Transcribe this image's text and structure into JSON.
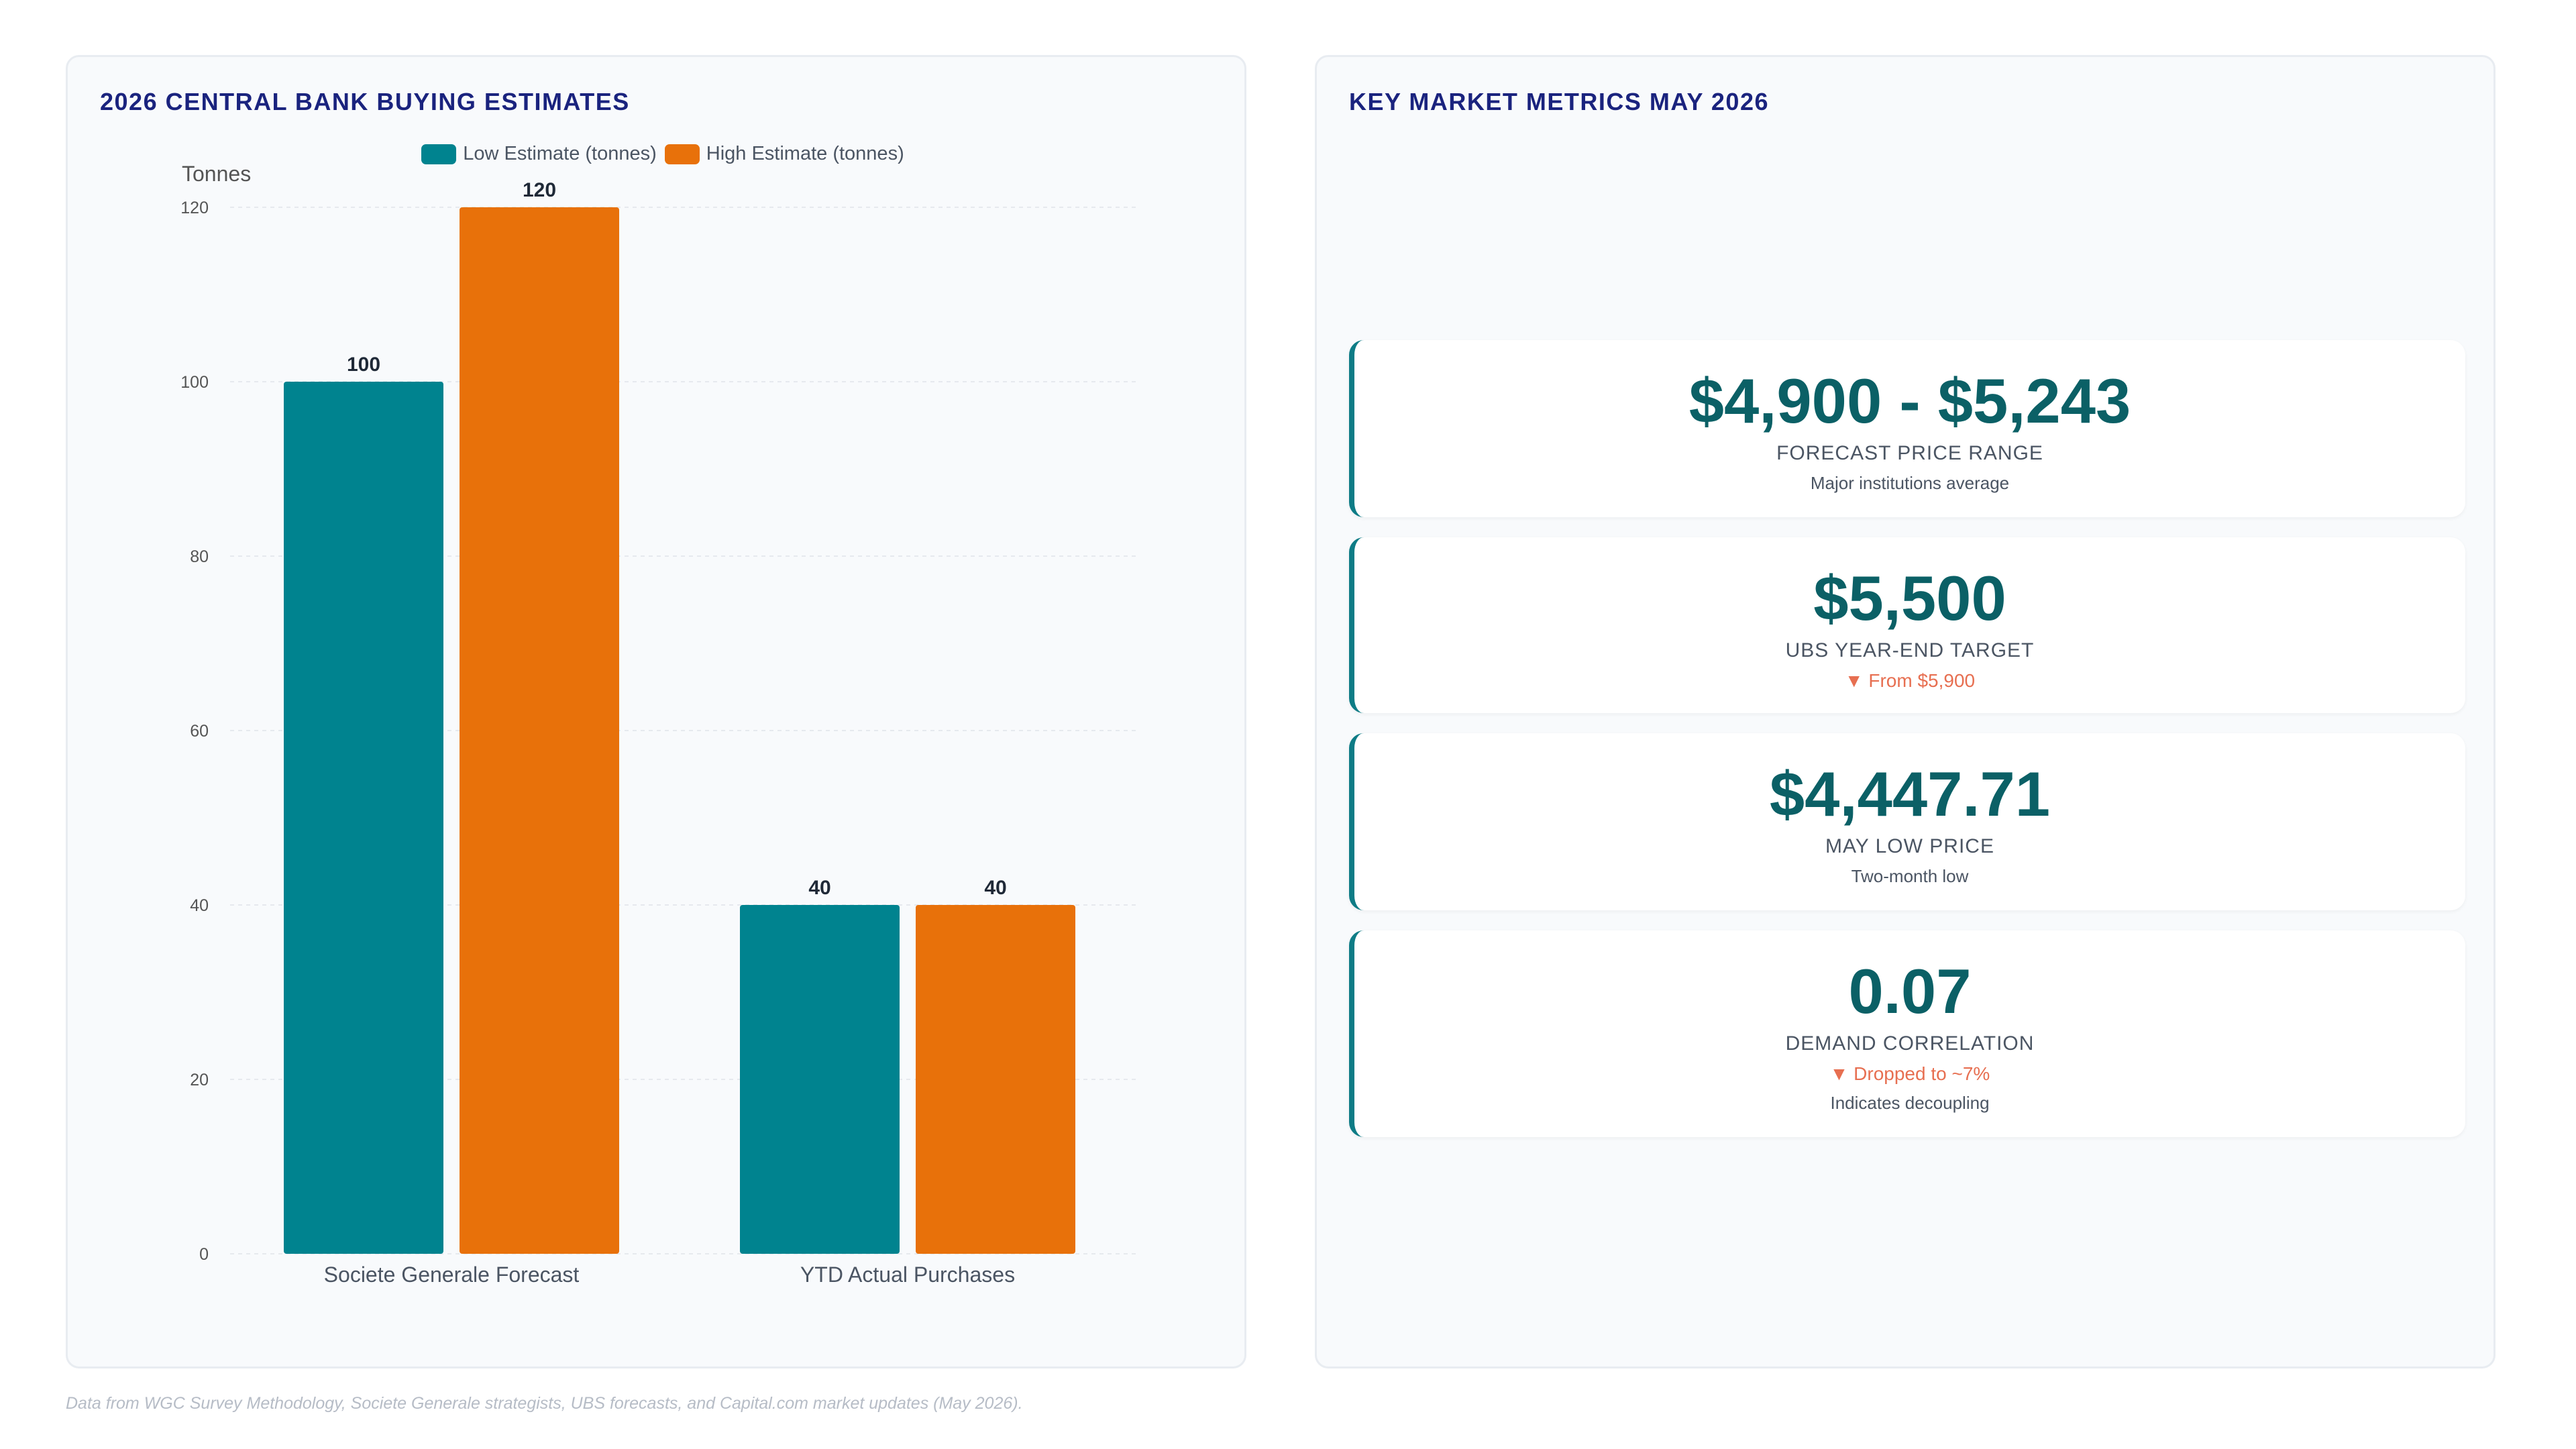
{
  "left_panel": {
    "title": "2026 CENTRAL BANK BUYING ESTIMATES"
  },
  "right_panel": {
    "title": "KEY MARKET METRICS MAY 2026"
  },
  "chart_data": {
    "type": "bar",
    "title": "2026 CENTRAL BANK BUYING ESTIMATES",
    "ylabel": "Tonnes",
    "xlabel": "",
    "categories": [
      "Societe Generale Forecast",
      "YTD Actual Purchases"
    ],
    "series": [
      {
        "name": "Low Estimate (tonnes)",
        "values": [
          100,
          40
        ],
        "color": "#00838f"
      },
      {
        "name": "High Estimate (tonnes)",
        "values": [
          120,
          40
        ],
        "color": "#e8710a"
      }
    ],
    "ylim": [
      0,
      120
    ],
    "yticks": [
      0,
      20,
      40,
      60,
      80,
      100,
      120
    ],
    "grid": true,
    "legend_position": "top"
  },
  "metrics": [
    {
      "value": "$4,900 - $5,243",
      "label": "FORECAST PRICE RANGE",
      "sub": "Major institutions average"
    },
    {
      "value": "$5,500",
      "label": "UBS YEAR-END TARGET",
      "change": "▼ From $5,900"
    },
    {
      "value": "$4,447.71",
      "label": "MAY LOW PRICE",
      "sub": "Two-month low"
    },
    {
      "value": "0.07",
      "label": "DEMAND CORRELATION",
      "change": "▼ Dropped to ~7%",
      "sub": "Indicates decoupling"
    }
  ],
  "footer": "Data from WGC Survey Methodology, Societe Generale strategists, UBS forecasts, and Capital.com market updates (May 2026)."
}
